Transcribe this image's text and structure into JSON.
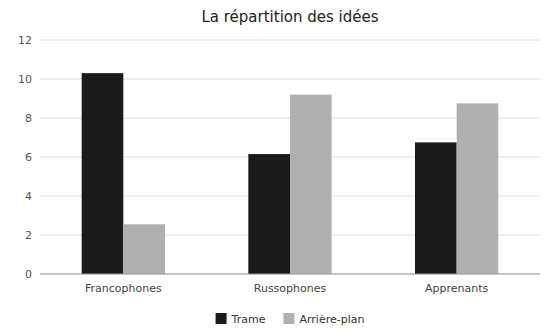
{
  "chart_data": {
    "type": "bar",
    "title": "La répartition des idées",
    "categories": [
      "Francophones",
      "Russophones",
      "Apprenants"
    ],
    "series": [
      {
        "name": "Trame",
        "color": "#1a1a1a",
        "values": [
          10.3,
          6.15,
          6.75
        ]
      },
      {
        "name": "Arrière-plan",
        "color": "#b0b0b0",
        "values": [
          2.55,
          9.2,
          8.75
        ]
      }
    ],
    "ylim": [
      0,
      12
    ],
    "yticks": [
      0,
      2,
      4,
      6,
      8,
      10,
      12
    ],
    "grid": true,
    "legend": "bottom"
  }
}
